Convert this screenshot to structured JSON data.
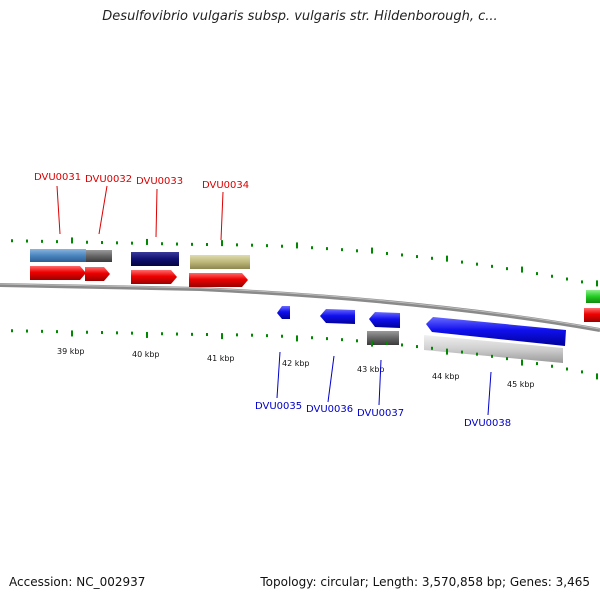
{
  "title": "Desulfovibrio vulgaris subsp. vulgaris str. Hildenborough, c...",
  "footer": {
    "accession": "Accession: NC_002937",
    "summary": "Topology: circular; Length: 3,570,858 bp; Genes: 3,465"
  },
  "colors": {
    "forward_label": "#dd0000",
    "reverse_label": "#0000cc",
    "tick": "#008800",
    "backbone": "#808080",
    "red_arrow": "#ee0000",
    "blue_arrow": "#1010ee"
  },
  "scale_labels": [
    "39 kbp",
    "40 kbp",
    "41 kbp",
    "42 kbp",
    "43 kbp",
    "44 kbp",
    "45 kbp"
  ],
  "genes_forward": [
    "DVU0031",
    "DVU0032",
    "DVU0033",
    "DVU0034"
  ],
  "genes_reverse": [
    "DVU0035",
    "DVU0036",
    "DVU0037",
    "DVU0038"
  ]
}
